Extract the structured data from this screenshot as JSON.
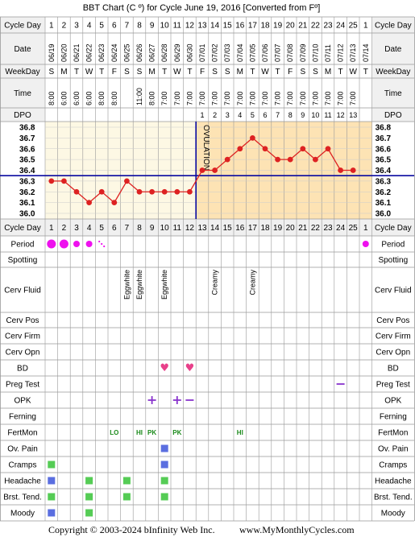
{
  "title": "BBT Chart (C º) for Cycle June 19, 2016  [Converted from Fº]",
  "footer_left": "Copyright © 2003-2024 bInfinity Web Inc.",
  "footer_right": "www.MyMonthlyCycles.com",
  "row_labels": {
    "cycle_day": "Cycle Day",
    "date": "Date",
    "weekday": "WeekDay",
    "time": "Time",
    "dpo": "DPO",
    "period": "Period",
    "spotting": "Spotting",
    "cerv_fluid": "Cerv Fluid",
    "cerv_pos": "Cerv Pos",
    "cerv_firm": "Cerv Firm",
    "cerv_opn": "Cerv Opn",
    "bd": "BD",
    "preg_test": "Preg Test",
    "opk": "OPK",
    "ferning": "Ferning",
    "fertmon": "FertMon",
    "ov_pain": "Ov. Pain",
    "cramps": "Cramps",
    "headache": "Headache",
    "brst_tend": "Brst. Tend.",
    "moody": "Moody"
  },
  "ovulation_label": "OVULATION",
  "colors": {
    "period": "#ee11ee",
    "follicular_bg": "#fdf8e4",
    "luteal_bg": "#fde3b4",
    "cover_line": "#0a0aa0",
    "temp_line": "#dd2222",
    "bd_heart": "#e8408a",
    "opk": "#8833cc",
    "fertmon": "#1a8a1a",
    "ov_pain": "#5a6ee0",
    "cramps": "#55cc55",
    "headache": "#5a6ee0",
    "symptom_green": "#55cc55"
  },
  "chart_data": {
    "type": "line",
    "cycle_days": [
      "1",
      "2",
      "3",
      "4",
      "5",
      "6",
      "7",
      "8",
      "9",
      "10",
      "11",
      "12",
      "13",
      "14",
      "15",
      "16",
      "17",
      "18",
      "19",
      "20",
      "21",
      "22",
      "23",
      "24",
      "25",
      "1"
    ],
    "dates": [
      "06/19",
      "06/20",
      "06/21",
      "06/22",
      "06/23",
      "06/24",
      "06/25",
      "06/26",
      "06/27",
      "06/28",
      "06/29",
      "06/30",
      "07/01",
      "07/02",
      "07/03",
      "07/04",
      "07/05",
      "07/06",
      "07/07",
      "07/08",
      "07/09",
      "07/10",
      "07/11",
      "07/12",
      "07/13",
      "07/14"
    ],
    "weekdays": [
      "S",
      "M",
      "T",
      "W",
      "T",
      "F",
      "S",
      "S",
      "M",
      "T",
      "W",
      "T",
      "F",
      "S",
      "S",
      "M",
      "T",
      "W",
      "T",
      "F",
      "S",
      "S",
      "M",
      "T",
      "W",
      "T"
    ],
    "times": [
      "8:00",
      "6:00",
      "6:00",
      "6:00",
      "8:00",
      "8:00",
      "",
      "11:00",
      "8:00",
      "7:00",
      "7:00",
      "7:00",
      "7:00",
      "7:00",
      "7:00",
      "7:00",
      "7:00",
      "7:00",
      "7:00",
      "7:00",
      "7:00",
      "7:00",
      "7:00",
      "7:00",
      "7:00",
      ""
    ],
    "dpo": [
      "",
      "",
      "",
      "",
      "",
      "",
      "",
      "",
      "",
      "",
      "",
      "",
      "1",
      "2",
      "3",
      "4",
      "5",
      "6",
      "7",
      "8",
      "9",
      "10",
      "11",
      "12",
      "13",
      ""
    ],
    "temps": [
      36.3,
      36.3,
      36.2,
      36.1,
      36.2,
      36.1,
      36.3,
      36.2,
      36.2,
      36.2,
      36.2,
      36.2,
      36.4,
      36.4,
      36.5,
      36.6,
      36.7,
      36.6,
      36.5,
      36.5,
      36.6,
      36.5,
      36.6,
      36.4,
      36.4,
      null
    ],
    "y_ticks": [
      "36.8",
      "36.7",
      "36.6",
      "36.5",
      "36.4",
      "36.3",
      "36.2",
      "36.1",
      "36.0"
    ],
    "ylim": [
      36.0,
      36.8
    ],
    "cover_line": 36.35,
    "ovulation_day_index": 12,
    "period": [
      "heavy",
      "heavy",
      "medium",
      "medium",
      "spotting",
      "",
      "",
      "",
      "",
      "",
      "",
      "",
      "",
      "",
      "",
      "",
      "",
      "",
      "",
      "",
      "",
      "",
      "",
      "",
      "",
      "medium"
    ],
    "cerv_fluid": [
      "",
      "",
      "",
      "",
      "",
      "",
      "Eggwhite",
      "Eggwhite",
      "",
      "Eggwhite",
      "",
      "",
      "",
      "Creamy",
      "",
      "",
      "Creamy",
      "",
      "",
      "",
      "",
      "",
      "",
      "",
      "",
      ""
    ],
    "bd": [
      "",
      "",
      "",
      "",
      "",
      "",
      "",
      "",
      "",
      "heart",
      "",
      "heart",
      "",
      "",
      "",
      "",
      "",
      "",
      "",
      "",
      "",
      "",
      "",
      "",
      "",
      ""
    ],
    "preg_test": [
      "",
      "",
      "",
      "",
      "",
      "",
      "",
      "",
      "",
      "",
      "",
      "",
      "",
      "",
      "",
      "",
      "",
      "",
      "",
      "",
      "",
      "",
      "",
      "neg",
      "",
      ""
    ],
    "opk": [
      "",
      "",
      "",
      "",
      "",
      "",
      "",
      "",
      "+",
      "",
      "+",
      "−",
      "",
      "",
      "",
      "",
      "",
      "",
      "",
      "",
      "",
      "",
      "",
      "",
      "",
      ""
    ],
    "fertmon": [
      "",
      "",
      "",
      "",
      "",
      "LO",
      "",
      "HI",
      "PK",
      "",
      "PK",
      "",
      "",
      "",
      "",
      "HI",
      "",
      "",
      "",
      "",
      "",
      "",
      "",
      "",
      "",
      ""
    ],
    "ov_pain": [
      "",
      "",
      "",
      "",
      "",
      "",
      "",
      "",
      "",
      "x",
      "",
      "",
      "",
      "",
      "",
      "",
      "",
      "",
      "",
      "",
      "",
      "",
      "",
      "",
      "",
      ""
    ],
    "cramps": [
      "x",
      "",
      "",
      "",
      "",
      "",
      "",
      "",
      "",
      "x",
      "",
      "",
      "",
      "",
      "",
      "",
      "",
      "",
      "",
      "",
      "",
      "",
      "",
      "",
      "",
      ""
    ],
    "headache": [
      "x",
      "",
      "",
      "x",
      "",
      "",
      "x",
      "",
      "",
      "x",
      "",
      "",
      "",
      "",
      "",
      "",
      "",
      "",
      "",
      "",
      "",
      "",
      "",
      "",
      "",
      ""
    ],
    "brst_tend": [
      "x",
      "",
      "",
      "x",
      "",
      "",
      "x",
      "",
      "",
      "x",
      "",
      "",
      "",
      "",
      "",
      "",
      "",
      "",
      "",
      "",
      "",
      "",
      "",
      "",
      "",
      ""
    ],
    "moody": [
      "x",
      "",
      "",
      "x",
      "",
      "",
      "",
      "",
      "",
      "",
      "",
      "",
      "",
      "",
      "",
      "",
      "",
      "",
      "",
      "",
      "",
      "",
      "",
      "",
      "",
      ""
    ]
  }
}
